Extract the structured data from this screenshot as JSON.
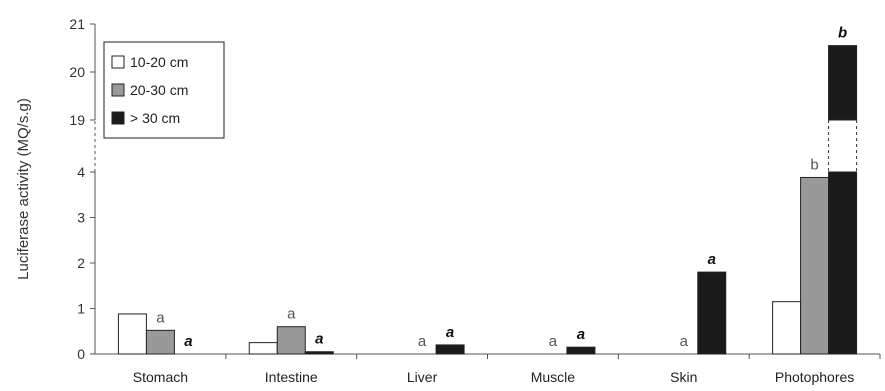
{
  "chart_data": {
    "type": "bar",
    "ylabel": "Luciferase activity (MQ/s.g)",
    "y_ticks": [
      "0",
      "1",
      "2",
      "3",
      "4",
      "19",
      "20",
      "21"
    ],
    "axis_break": {
      "from": 4,
      "to": 19
    },
    "categories": [
      "Stomach",
      "Intestine",
      "Liver",
      "Muscle",
      "Skin",
      "Photophores"
    ],
    "legend_position": "top-left",
    "series": [
      {
        "name": "10-20 cm",
        "color": "#ffffff",
        "values": [
          0.88,
          0.25,
          null,
          null,
          null,
          1.15
        ],
        "labels": [
          "",
          "",
          "",
          "",
          "",
          ""
        ]
      },
      {
        "name": "20-30 cm",
        "color": "#999999",
        "values": [
          0.52,
          0.6,
          null,
          null,
          null,
          3.88
        ],
        "labels": [
          "a",
          "a",
          "a",
          "a",
          "a",
          "b"
        ]
      },
      {
        "name": "> 30 cm",
        "color": "#1a1a1a",
        "values": [
          0.0,
          0.05,
          0.2,
          0.15,
          1.8,
          20.55
        ],
        "labels": [
          "a",
          "a",
          "a",
          "a",
          "a",
          "b"
        ]
      }
    ]
  }
}
